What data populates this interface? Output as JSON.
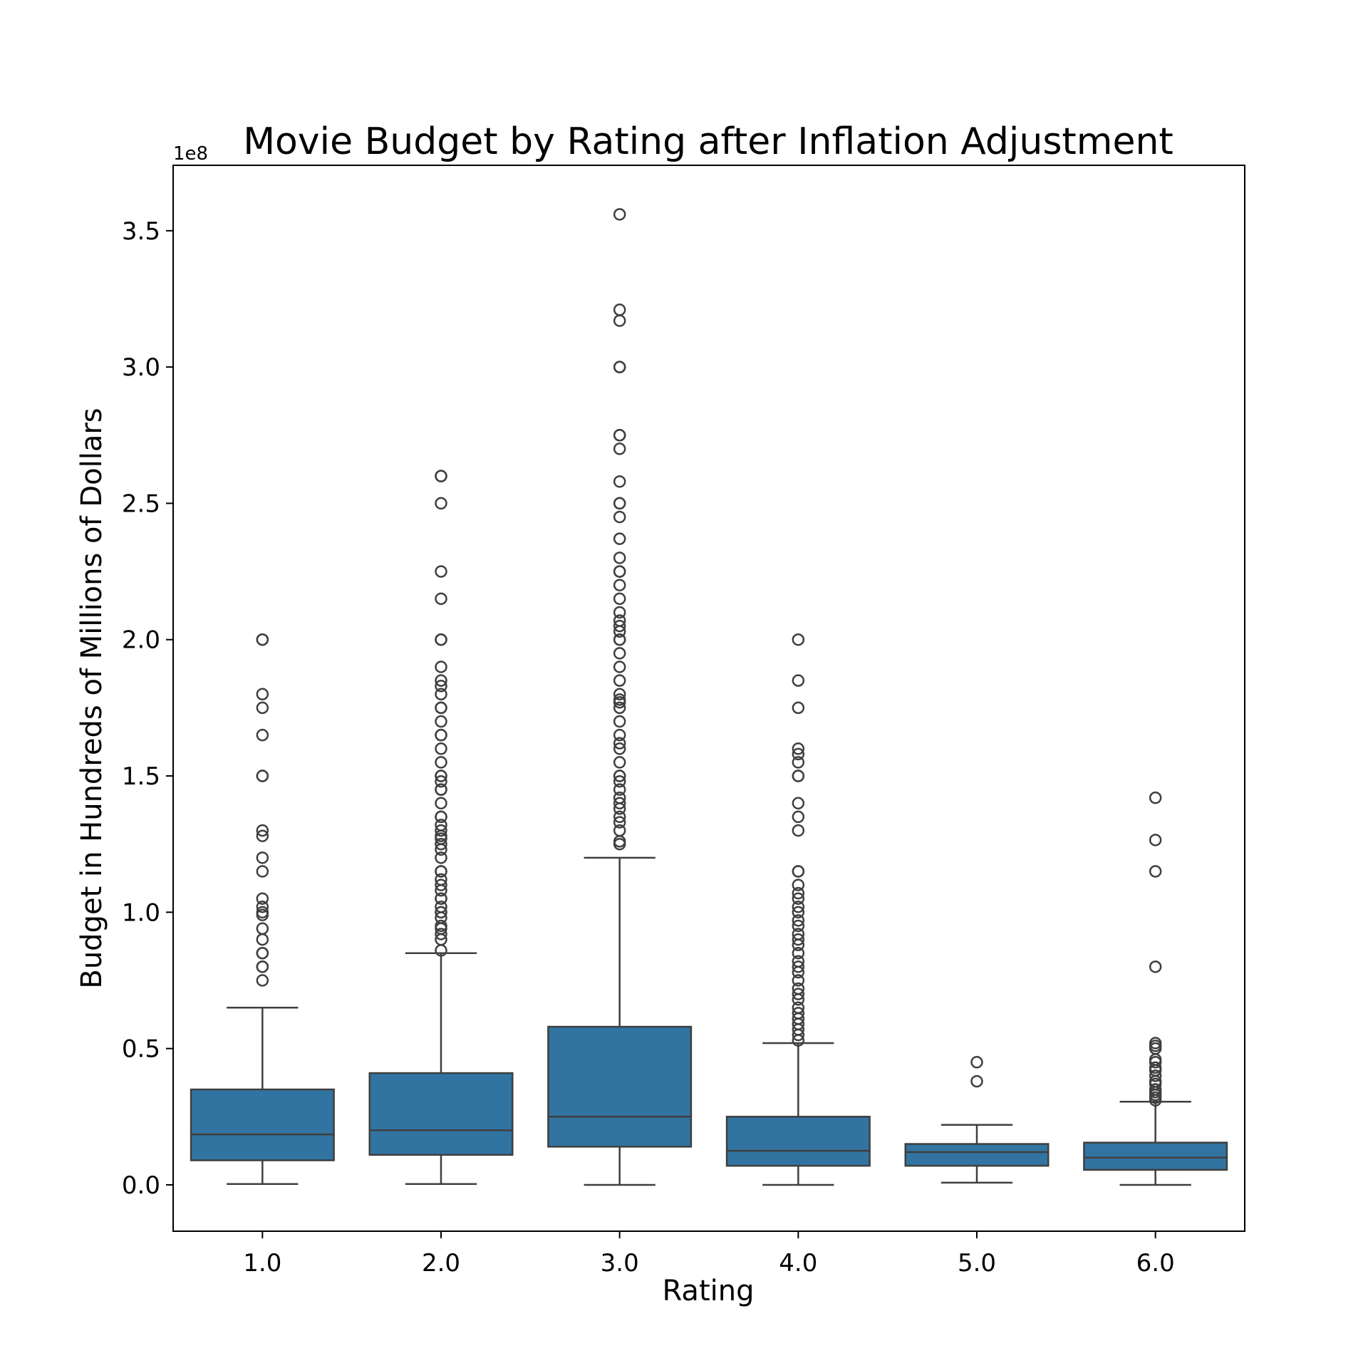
{
  "colors": {
    "box_fill": "#3274a1",
    "line": "#3f3f3f",
    "frame": "#000000"
  },
  "chart_data": {
    "type": "box",
    "title": "Movie Budget by Rating after Inflation Adjustment",
    "xlabel": "Rating",
    "ylabel": "Budget in Hundreds of Millions of Dollars",
    "y_offset_label": "1e8",
    "ylim": [
      -0.17,
      3.74
    ],
    "yticks": [
      0.0,
      0.5,
      1.0,
      1.5,
      2.0,
      2.5,
      3.0,
      3.5
    ],
    "ytick_labels": [
      "0.0",
      "0.5",
      "1.0",
      "1.5",
      "2.0",
      "2.5",
      "3.0",
      "3.5"
    ],
    "categories": [
      "1.0",
      "2.0",
      "3.0",
      "4.0",
      "5.0",
      "6.0"
    ],
    "grid": false,
    "boxes": [
      {
        "category": "1.0",
        "whislo": 0.003,
        "q1": 0.09,
        "med": 0.185,
        "q3": 0.35,
        "whishi": 0.65,
        "fliers": [
          0.75,
          0.8,
          0.8,
          0.85,
          0.85,
          0.9,
          0.94,
          0.99,
          1.0,
          1.02,
          1.05,
          1.15,
          1.2,
          1.28,
          1.3,
          1.5,
          1.5,
          1.65,
          1.75,
          1.8,
          2.0,
          2.0
        ]
      },
      {
        "category": "2.0",
        "whislo": 0.003,
        "q1": 0.11,
        "med": 0.2,
        "q3": 0.41,
        "whishi": 0.85,
        "fliers": [
          0.86,
          0.9,
          0.92,
          0.94,
          0.95,
          0.98,
          1.0,
          1.0,
          1.02,
          1.05,
          1.05,
          1.08,
          1.1,
          1.12,
          1.15,
          1.15,
          1.2,
          1.23,
          1.25,
          1.27,
          1.28,
          1.3,
          1.32,
          1.35,
          1.35,
          1.4,
          1.45,
          1.45,
          1.48,
          1.5,
          1.5,
          1.55,
          1.6,
          1.65,
          1.65,
          1.7,
          1.75,
          1.75,
          1.8,
          1.83,
          1.85,
          1.9,
          2.0,
          2.0,
          2.15,
          2.25,
          2.5,
          2.6,
          2.6
        ]
      },
      {
        "category": "3.0",
        "whislo": 0.0,
        "q1": 0.14,
        "med": 0.25,
        "q3": 0.58,
        "whishi": 1.2,
        "fliers": [
          1.25,
          1.26,
          1.3,
          1.33,
          1.35,
          1.38,
          1.4,
          1.42,
          1.45,
          1.48,
          1.5,
          1.5,
          1.55,
          1.6,
          1.62,
          1.65,
          1.7,
          1.75,
          1.77,
          1.78,
          1.8,
          1.85,
          1.9,
          1.95,
          2.0,
          2.0,
          2.03,
          2.05,
          2.07,
          2.1,
          2.15,
          2.2,
          2.25,
          2.25,
          2.3,
          2.37,
          2.45,
          2.5,
          2.5,
          2.58,
          2.7,
          2.75,
          2.75,
          3.0,
          3.0,
          3.17,
          3.21,
          3.56
        ]
      },
      {
        "category": "4.0",
        "whislo": 0.0,
        "q1": 0.07,
        "med": 0.125,
        "q3": 0.25,
        "whishi": 0.52,
        "fliers": [
          0.53,
          0.55,
          0.57,
          0.59,
          0.61,
          0.63,
          0.65,
          0.68,
          0.7,
          0.72,
          0.75,
          0.78,
          0.8,
          0.82,
          0.85,
          0.88,
          0.9,
          0.92,
          0.95,
          0.97,
          1.0,
          1.02,
          1.05,
          1.07,
          1.1,
          1.15,
          1.15,
          1.3,
          1.35,
          1.4,
          1.5,
          1.5,
          1.55,
          1.58,
          1.6,
          1.75,
          1.85,
          2.0
        ]
      },
      {
        "category": "5.0",
        "whislo": 0.008,
        "q1": 0.07,
        "med": 0.12,
        "q3": 0.15,
        "whishi": 0.22,
        "fliers": [
          0.38,
          0.45
        ]
      },
      {
        "category": "6.0",
        "whislo": 0.0,
        "q1": 0.055,
        "med": 0.1,
        "q3": 0.155,
        "whishi": 0.305,
        "fliers": [
          0.31,
          0.32,
          0.33,
          0.34,
          0.35,
          0.37,
          0.38,
          0.4,
          0.42,
          0.43,
          0.45,
          0.46,
          0.5,
          0.51,
          0.52,
          0.8,
          1.15,
          1.265,
          1.42
        ]
      }
    ]
  }
}
